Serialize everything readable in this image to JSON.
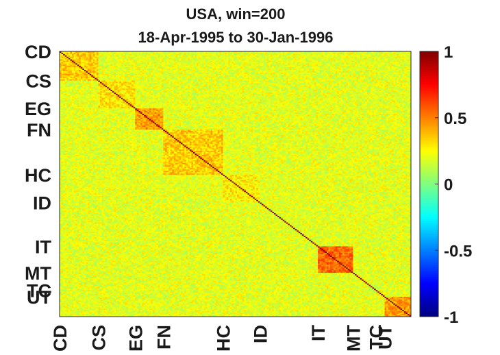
{
  "chart_data": {
    "type": "heatmap",
    "title": "USA, win=200",
    "subtitle": "18-Apr-1995 to 30-Jan-1996",
    "n": 200,
    "sectors": [
      {
        "label": "CD",
        "start": 0
      },
      {
        "label": "CS",
        "start": 22
      },
      {
        "label": "EG",
        "start": 43
      },
      {
        "label": "FN",
        "start": 59
      },
      {
        "label": "HC",
        "start": 93
      },
      {
        "label": "ID",
        "start": 114
      },
      {
        "label": "IT",
        "start": 147
      },
      {
        "label": "MT",
        "start": 167
      },
      {
        "label": "TC",
        "start": 180
      },
      {
        "label": "UT",
        "start": 185
      }
    ],
    "block_within_corr": [
      0.35,
      0.3,
      0.45,
      0.35,
      0.28,
      0.2,
      0.55,
      0.2,
      0.25,
      0.45
    ],
    "background_corr": 0.2,
    "diagonal": 1,
    "clim": [
      -1,
      1
    ],
    "colorbar": {
      "ticks": [
        -1,
        -0.5,
        0,
        0.5,
        1
      ],
      "tick_labels": [
        "-1",
        "-0.5",
        "0",
        "0.5",
        "1"
      ],
      "colormap": "jet"
    }
  }
}
